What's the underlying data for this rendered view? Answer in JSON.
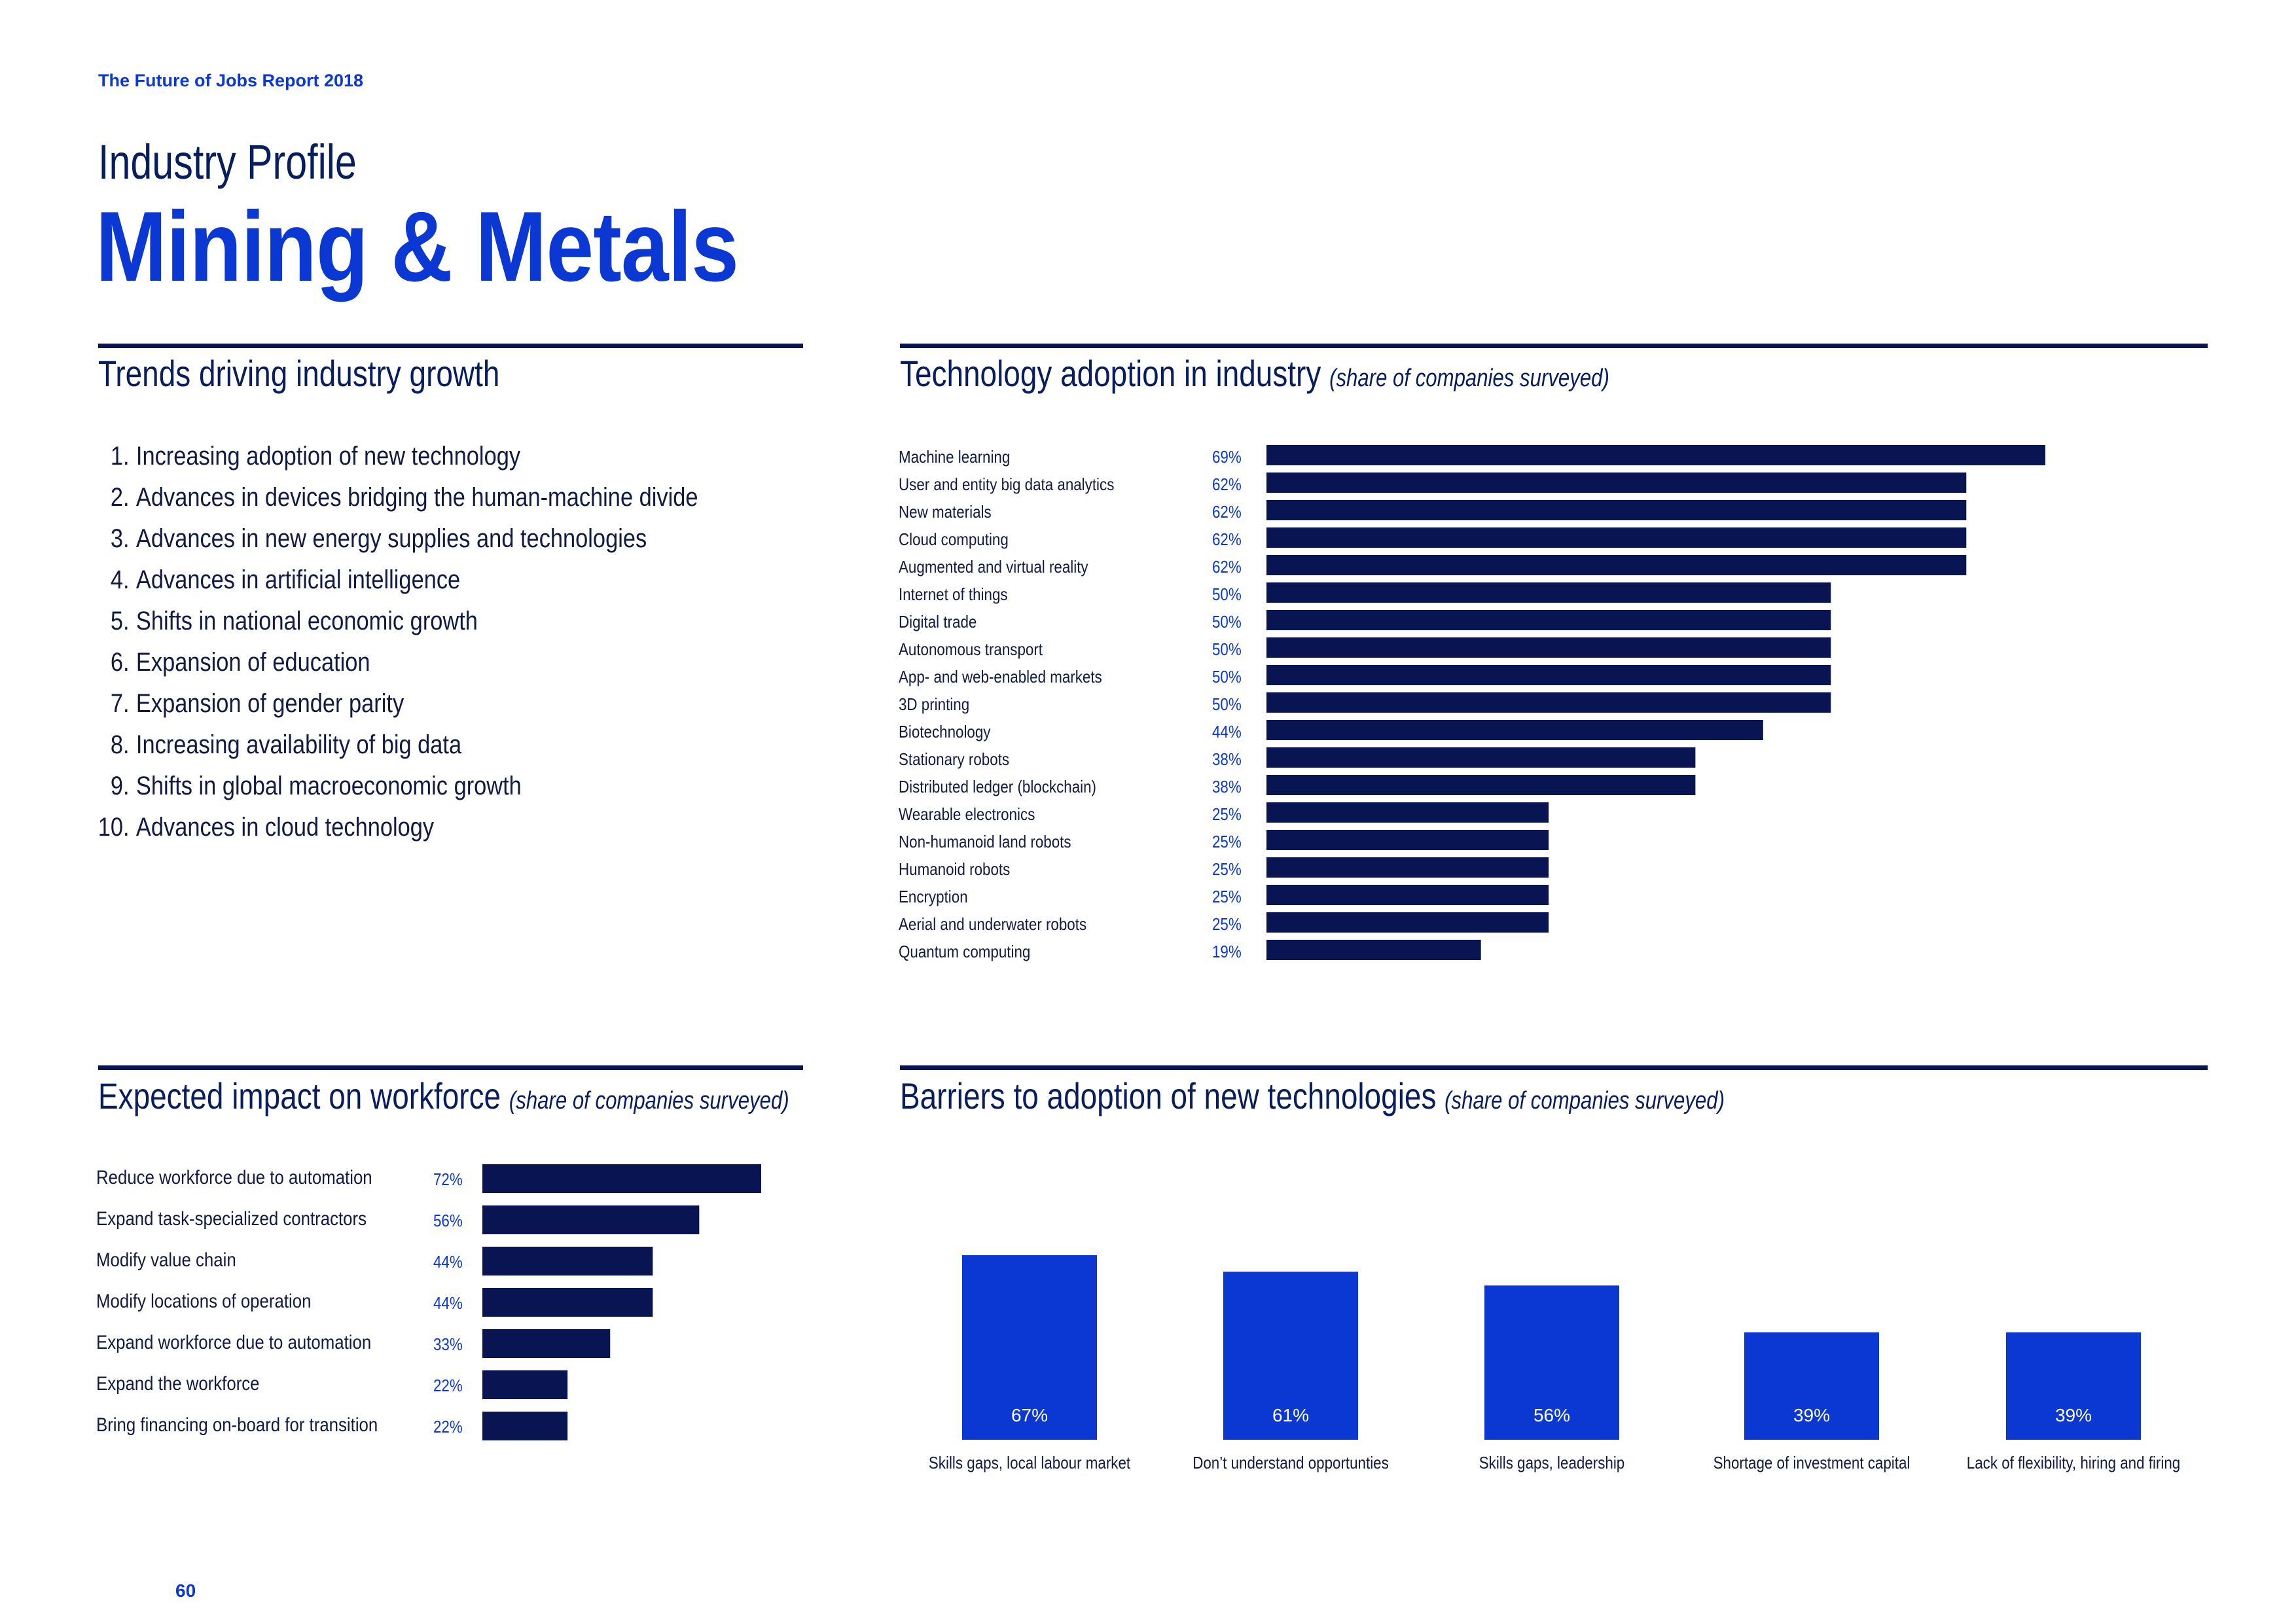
{
  "header": {
    "report_title": "The Future of Jobs Report 2018",
    "profile_label": "Industry Profile",
    "industry_name": "Mining & Metals"
  },
  "trends": {
    "title": "Trends driving industry growth",
    "items": [
      {
        "num": "1.",
        "label": "Increasing adoption of new technology"
      },
      {
        "num": "2.",
        "label": "Advances in devices bridging the human-machine divide"
      },
      {
        "num": "3.",
        "label": "Advances in new energy supplies and technologies"
      },
      {
        "num": "4.",
        "label": "Advances in artificial intelligence"
      },
      {
        "num": "5.",
        "label": "Shifts in national economic growth"
      },
      {
        "num": "6.",
        "label": "Expansion of education"
      },
      {
        "num": "7.",
        "label": "Expansion of gender parity"
      },
      {
        "num": "8.",
        "label": "Increasing availability of big data"
      },
      {
        "num": "9.",
        "label": "Shifts in global macroeconomic growth"
      },
      {
        "num": "10.",
        "label": "Advances in cloud technology"
      }
    ]
  },
  "chart_data": [
    {
      "id": "tech",
      "type": "bar",
      "orientation": "horizontal",
      "title": "Technology adoption in industry",
      "subtitle": "(share of companies surveyed)",
      "categories": [
        "Machine learning",
        "User and entity big data analytics",
        "New materials",
        "Cloud computing",
        "Augmented and virtual reality",
        "Internet of things",
        "Digital trade",
        "Autonomous transport",
        "App- and web-enabled markets",
        "3D printing",
        "Biotechnology",
        "Stationary robots",
        "Distributed ledger (blockchain)",
        "Wearable electronics",
        "Non-humanoid land robots",
        "Humanoid robots",
        "Encryption",
        "Aerial and underwater robots",
        "Quantum computing"
      ],
      "values": [
        69,
        62,
        62,
        62,
        62,
        50,
        50,
        50,
        50,
        50,
        44,
        38,
        38,
        25,
        25,
        25,
        25,
        25,
        19
      ],
      "value_labels": [
        "69%",
        "62%",
        "62%",
        "62%",
        "62%",
        "50%",
        "50%",
        "50%",
        "50%",
        "50%",
        "44%",
        "38%",
        "38%",
        "25%",
        "25%",
        "25%",
        "25%",
        "25%",
        "19%"
      ],
      "color": "#081552"
    },
    {
      "id": "workforce",
      "type": "bar",
      "orientation": "horizontal",
      "title": "Expected impact on workforce",
      "subtitle": "(share of companies surveyed)",
      "categories": [
        "Reduce workforce due to automation",
        "Expand task-specialized contractors",
        "Modify value chain",
        "Modify locations of operation",
        "Expand workforce due to automation",
        "Expand the workforce",
        "Bring financing on-board for transition"
      ],
      "values": [
        72,
        56,
        44,
        44,
        33,
        22,
        22
      ],
      "value_labels": [
        "72%",
        "56%",
        "44%",
        "44%",
        "33%",
        "22%",
        "22%"
      ],
      "color": "#081552"
    },
    {
      "id": "barriers",
      "type": "bar",
      "orientation": "vertical",
      "title": "Barriers to adoption of new technologies",
      "subtitle": "(share of companies surveyed)",
      "categories": [
        "Skills gaps, local labour market",
        "Don’t understand opportunties",
        "Skills gaps, leadership",
        "Shortage of investment capital",
        "Lack of flexibility, hiring and firing"
      ],
      "values": [
        67,
        61,
        56,
        39,
        39
      ],
      "value_labels": [
        "67%",
        "61%",
        "56%",
        "39%",
        "39%"
      ],
      "color": "#0b37d2"
    }
  ],
  "footer": {
    "page_number": "60"
  }
}
